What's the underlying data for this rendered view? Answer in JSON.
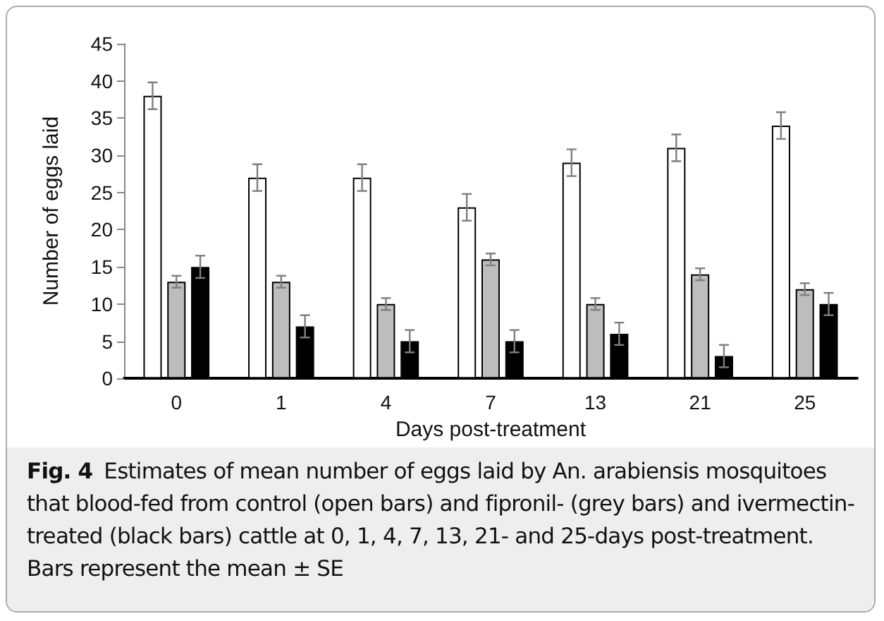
{
  "chart_data": {
    "type": "bar",
    "xlabel": "Days post-treatment",
    "ylabel": "Number of eggs laid",
    "categories": [
      "0",
      "1",
      "4",
      "7",
      "13",
      "21",
      "25"
    ],
    "series": [
      {
        "color": "#ffffff",
        "values": [
          38,
          27,
          27,
          23,
          29,
          31,
          34
        ],
        "errors": [
          1.8,
          1.8,
          1.8,
          1.8,
          1.8,
          1.8,
          1.8
        ]
      },
      {
        "color": "#bdbdbd",
        "values": [
          13,
          13,
          10,
          16,
          10,
          14,
          12
        ],
        "errors": [
          0.8,
          0.8,
          0.8,
          0.8,
          0.8,
          0.8,
          0.8
        ]
      },
      {
        "color": "#000000",
        "values": [
          15,
          7,
          5,
          5,
          6,
          3,
          10
        ],
        "errors": [
          1.5,
          1.5,
          1.5,
          1.5,
          1.5,
          1.5,
          1.5
        ]
      }
    ],
    "ylim": [
      0,
      45
    ],
    "yticks": [
      0,
      5,
      10,
      15,
      20,
      25,
      30,
      35,
      40,
      45
    ],
    "grid": false,
    "annotations": [
      "Fig. 4",
      "Estimates of mean number of eggs laid by An. arabiensis mosquitoes that blood-fed from control (open bars) and fipronil- (grey bars) and ivermectin-treated (black bars) cattle at 0, 1, 4, 7, 13, 21- and 25-days post-treatment. Bars represent the mean ± SE"
    ]
  }
}
